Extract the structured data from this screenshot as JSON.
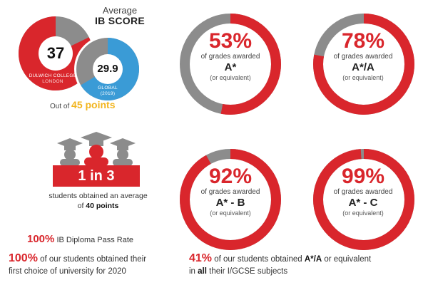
{
  "ib_score": {
    "title_line1": "Average",
    "title_line2": "IB SCORE",
    "dulwich_value": "37",
    "dulwich_label_1": "DULWICH COLLEGE",
    "dulwich_label_2": "LONDON",
    "global_value": "29.9",
    "global_label_1": "GLOBAL",
    "global_label_2": "(2019)",
    "out_of_prefix": "Out of",
    "out_of_value": "45 points"
  },
  "donuts": [
    {
      "pct": "53%",
      "fraction": 0.53,
      "sub": "of grades awarded",
      "grade": "A*",
      "equiv": "(or equivalent)"
    },
    {
      "pct": "78%",
      "fraction": 0.78,
      "sub": "of grades awarded",
      "grade": "A*/A",
      "equiv": "(or equivalent)"
    },
    {
      "pct": "92%",
      "fraction": 0.92,
      "sub": "of grades awarded",
      "grade": "A* - B",
      "equiv": "(or equivalent)"
    },
    {
      "pct": "99%",
      "fraction": 0.99,
      "sub": "of grades awarded",
      "grade": "A* - C",
      "equiv": "(or equivalent)"
    }
  ],
  "one_in_three": {
    "badge": "1 in 3",
    "text_1": "students obtained an average",
    "text_2_prefix": "of",
    "text_2_bold": "40 points"
  },
  "stats": {
    "pass_rate_value": "100%",
    "pass_rate_text": "IB Diploma Pass Rate",
    "uni_value": "100%",
    "uni_text_1": "of our students obtained their",
    "uni_text_2": "first choice of university for 2020",
    "gcse_value": "41%",
    "gcse_text_1": "of our students obtained",
    "gcse_bold": "A*/A",
    "gcse_text_2": "or equivalent",
    "gcse_text_3": "in",
    "gcse_all": "all",
    "gcse_text_4": "their I/GCSE subjects"
  },
  "colors": {
    "red": "#d9262c",
    "grey": "#8c8c8c",
    "blue": "#3a9bd6",
    "yellow": "#f2b51f"
  }
}
